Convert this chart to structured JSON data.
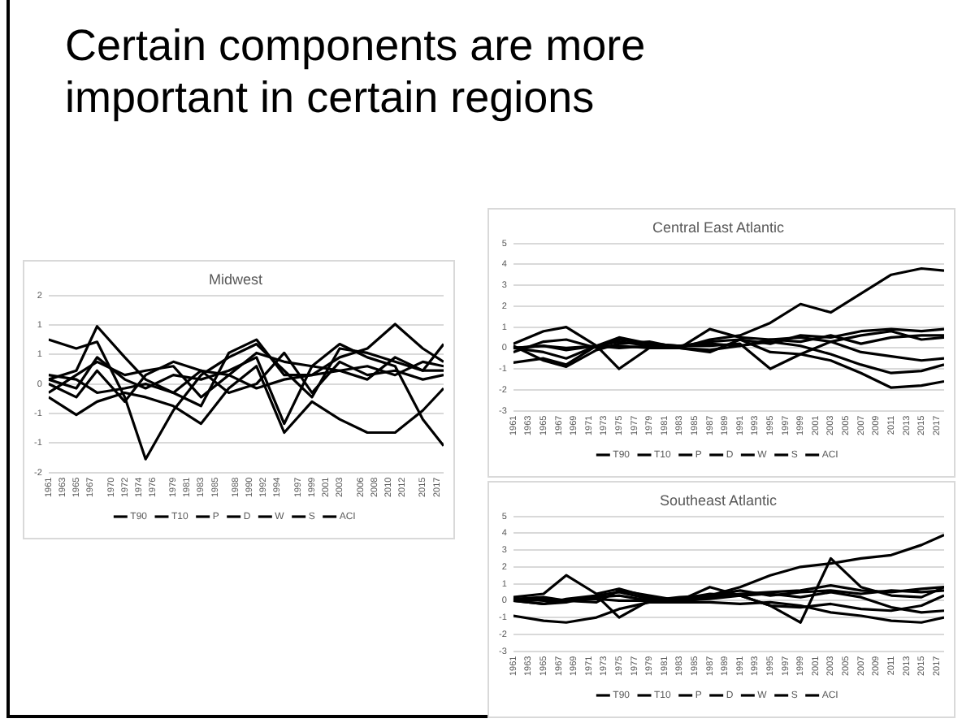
{
  "chart_data": [
    {
      "type": "other",
      "title": "Certain components are more important in certain regions"
    },
    {
      "type": "line",
      "title": "Midwest",
      "x": [
        1961,
        1965,
        1968,
        1972,
        1975,
        1979,
        1983,
        1987,
        1991,
        1995,
        1999,
        2003,
        2007,
        2011,
        2015,
        2018
      ],
      "xlim": [
        1961,
        2018
      ],
      "xticks": [
        1961,
        1963,
        1965,
        1967,
        1970,
        1972,
        1974,
        1976,
        1979,
        1981,
        1983,
        1985,
        1988,
        1990,
        1992,
        1994,
        1997,
        1999,
        2001,
        2003,
        2006,
        2008,
        2010,
        2012,
        2015,
        2017
      ],
      "ylim": [
        -2,
        2
      ],
      "yticks": [
        -2,
        {
          "value": -1.33,
          "label": "-1"
        },
        {
          "value": -0.67,
          "label": "-1"
        },
        0,
        {
          "value": 0.67,
          "label": "1"
        },
        {
          "value": 1.33,
          "label": "1"
        },
        2
      ],
      "grid": "y",
      "legend": "bottom",
      "marker": "none",
      "series": [
        {
          "name": "T90",
          "color": "#000000",
          "values": [
            1.0,
            0.8,
            0.95,
            -0.3,
            -1.7,
            -0.6,
            0.2,
            0.6,
            0.9,
            0.3,
            -0.3,
            0.8,
            0.7,
            0.5,
            0.3,
            0.9
          ]
        },
        {
          "name": "T10",
          "color": "#000000",
          "values": [
            0.1,
            0.3,
            1.3,
            0.6,
            0.1,
            -0.2,
            -0.5,
            0.7,
            1.0,
            0.2,
            0.2,
            0.6,
            0.8,
            1.35,
            0.8,
            0.5
          ]
        },
        {
          "name": "P",
          "color": "#000000",
          "values": [
            -0.2,
            0.2,
            0.5,
            0.2,
            0.3,
            0.4,
            -0.3,
            0.2,
            0.7,
            0.5,
            0.4,
            0.3,
            0.1,
            0.6,
            0.3,
            0.3
          ]
        },
        {
          "name": "D",
          "color": "#000000",
          "values": [
            0,
            -0.3,
            0.3,
            -0.4,
            0.2,
            0.5,
            0.3,
            -0.2,
            0,
            0.7,
            -0.2,
            0.5,
            0.2,
            0.3,
            0.1,
            0.2
          ]
        },
        {
          "name": "W",
          "color": "#000000",
          "values": [
            -0.3,
            -0.7,
            -0.4,
            -0.2,
            -0.3,
            -0.5,
            -0.9,
            -0.1,
            0.4,
            -1.1,
            -0.4,
            -0.8,
            -1.1,
            -1.1,
            -0.6,
            -0.1
          ]
        },
        {
          "name": "S",
          "color": "#000000",
          "values": [
            0.1,
            -0.1,
            0.6,
            0.1,
            -0.1,
            0.2,
            0.1,
            0.3,
            0.6,
            -0.9,
            0.4,
            0.9,
            0.6,
            0.4,
            -0.8,
            -1.4
          ]
        },
        {
          "name": "ACI",
          "color": "#000000",
          "values": [
            0.2,
            0.1,
            -0.2,
            -0.1,
            0,
            -0.2,
            0.3,
            0.2,
            -0.1,
            0.1,
            0.2,
            0.3,
            0.4,
            0.2,
            0.5,
            0.4
          ]
        }
      ]
    },
    {
      "type": "line",
      "title": "Central East Atlantic",
      "x": [
        1961,
        1965,
        1968,
        1972,
        1975,
        1979,
        1983,
        1987,
        1991,
        1995,
        1999,
        2003,
        2007,
        2011,
        2015,
        2018
      ],
      "xlim": [
        1961,
        2018
      ],
      "xticks": [
        1961,
        1963,
        1965,
        1967,
        1969,
        1971,
        1973,
        1975,
        1977,
        1979,
        1981,
        1983,
        1985,
        1987,
        1989,
        1991,
        1993,
        1995,
        1997,
        1999,
        2001,
        2003,
        2005,
        2007,
        2009,
        2011,
        2013,
        2015,
        2017
      ],
      "ylim": [
        -3,
        5
      ],
      "yticks": [
        -3,
        -2,
        -1,
        0,
        1,
        2,
        3,
        4,
        5
      ],
      "grid": "y",
      "legend": "bottom",
      "marker": "none",
      "series": [
        {
          "name": "T90",
          "color": "#000000",
          "values": [
            0,
            0.1,
            -0.1,
            0.1,
            0,
            0.1,
            0,
            0.4,
            0.6,
            1.2,
            2.1,
            1.7,
            2.6,
            3.5,
            3.8,
            3.7
          ]
        },
        {
          "name": "T10",
          "color": "#000000",
          "values": [
            0,
            -0.2,
            -0.5,
            0.1,
            0.5,
            0.2,
            0.1,
            0.3,
            0.4,
            0.2,
            0.6,
            0.5,
            0.8,
            0.9,
            0.8,
            0.9
          ]
        },
        {
          "name": "P",
          "color": "#000000",
          "values": [
            0.2,
            0.8,
            1.0,
            0.1,
            0.3,
            0.1,
            0,
            0.9,
            0.5,
            0.4,
            0.3,
            0.6,
            0.2,
            0.5,
            0.6,
            0.6
          ]
        },
        {
          "name": "D",
          "color": "#000000",
          "values": [
            -0.2,
            0.3,
            0.4,
            0,
            0.4,
            0.2,
            0.1,
            0.1,
            0.2,
            -1.0,
            -0.3,
            0.3,
            -0.2,
            -0.4,
            -0.6,
            -0.5
          ]
        },
        {
          "name": "W",
          "color": "#000000",
          "values": [
            -0.7,
            -0.5,
            -0.8,
            0.1,
            -1.0,
            0,
            0,
            -0.1,
            0.1,
            0.3,
            0.1,
            -0.3,
            -0.8,
            -1.2,
            -1.1,
            -0.8
          ]
        },
        {
          "name": "S",
          "color": "#000000",
          "values": [
            0.1,
            -0.6,
            -0.9,
            -0.1,
            0.2,
            0.3,
            0,
            -0.2,
            0.4,
            -0.2,
            -0.3,
            -0.6,
            -1.2,
            -1.9,
            -1.8,
            -1.6
          ]
        },
        {
          "name": "ACI",
          "color": "#000000",
          "values": [
            0,
            0.1,
            0,
            0.1,
            0.1,
            0,
            0.1,
            0.2,
            0.1,
            0.4,
            0.5,
            0.3,
            0.6,
            0.8,
            0.4,
            0.5
          ]
        }
      ]
    },
    {
      "type": "line",
      "title": "Southeast Atlantic",
      "x": [
        1961,
        1965,
        1968,
        1972,
        1975,
        1979,
        1983,
        1987,
        1991,
        1995,
        1999,
        2003,
        2007,
        2011,
        2015,
        2018
      ],
      "xlim": [
        1961,
        2018
      ],
      "xticks": [
        1961,
        1963,
        1965,
        1967,
        1969,
        1971,
        1973,
        1975,
        1977,
        1979,
        1981,
        1983,
        1985,
        1987,
        1989,
        1991,
        1993,
        1995,
        1997,
        1999,
        2001,
        2003,
        2005,
        2007,
        2009,
        2011,
        2013,
        2015,
        2017
      ],
      "ylim": [
        -3,
        5
      ],
      "yticks": [
        -3,
        -2,
        -1,
        0,
        1,
        2,
        3,
        4,
        5
      ],
      "grid": "y",
      "legend": "bottom",
      "marker": "none",
      "series": [
        {
          "name": "T90",
          "color": "#000000",
          "values": [
            0,
            0.1,
            0,
            0.1,
            0,
            0,
            0,
            0.3,
            0.8,
            1.5,
            2.0,
            2.2,
            2.5,
            2.7,
            3.3,
            3.9
          ]
        },
        {
          "name": "T10",
          "color": "#000000",
          "values": [
            0.2,
            0.4,
            1.5,
            0.4,
            0.7,
            0.2,
            0,
            0.8,
            0.3,
            -0.3,
            -1.3,
            2.5,
            0.8,
            0.3,
            0.2,
            0.8
          ]
        },
        {
          "name": "P",
          "color": "#000000",
          "values": [
            0,
            -0.2,
            0.1,
            0.3,
            0.5,
            0.1,
            -0.1,
            0.2,
            0.4,
            0.5,
            0.6,
            0.9,
            0.6,
            0.5,
            0.7,
            0.8
          ]
        },
        {
          "name": "D",
          "color": "#000000",
          "values": [
            0.1,
            0,
            0,
            -0.1,
            0.6,
            0.3,
            0,
            0.1,
            0.3,
            0.4,
            0.2,
            0.5,
            0.2,
            -0.4,
            -0.7,
            -0.6
          ]
        },
        {
          "name": "W",
          "color": "#000000",
          "values": [
            -0.9,
            -1.2,
            -1.3,
            -1.0,
            -0.5,
            -0.1,
            -0.1,
            -0.1,
            -0.2,
            -0.1,
            -0.3,
            -0.7,
            -0.9,
            -1.2,
            -1.3,
            -1.0
          ]
        },
        {
          "name": "S",
          "color": "#000000",
          "values": [
            0,
            -0.2,
            -0.1,
            0.3,
            -1.0,
            0,
            0.1,
            0.4,
            0.3,
            -0.3,
            -0.4,
            -0.2,
            -0.5,
            -0.6,
            -0.3,
            0.3
          ]
        },
        {
          "name": "ACI",
          "color": "#000000",
          "values": [
            0.1,
            0.2,
            0,
            0.2,
            0.3,
            0,
            0.2,
            0.3,
            0.6,
            0.3,
            0.5,
            0.6,
            0.4,
            0.6,
            0.5,
            0.6
          ]
        }
      ]
    }
  ]
}
